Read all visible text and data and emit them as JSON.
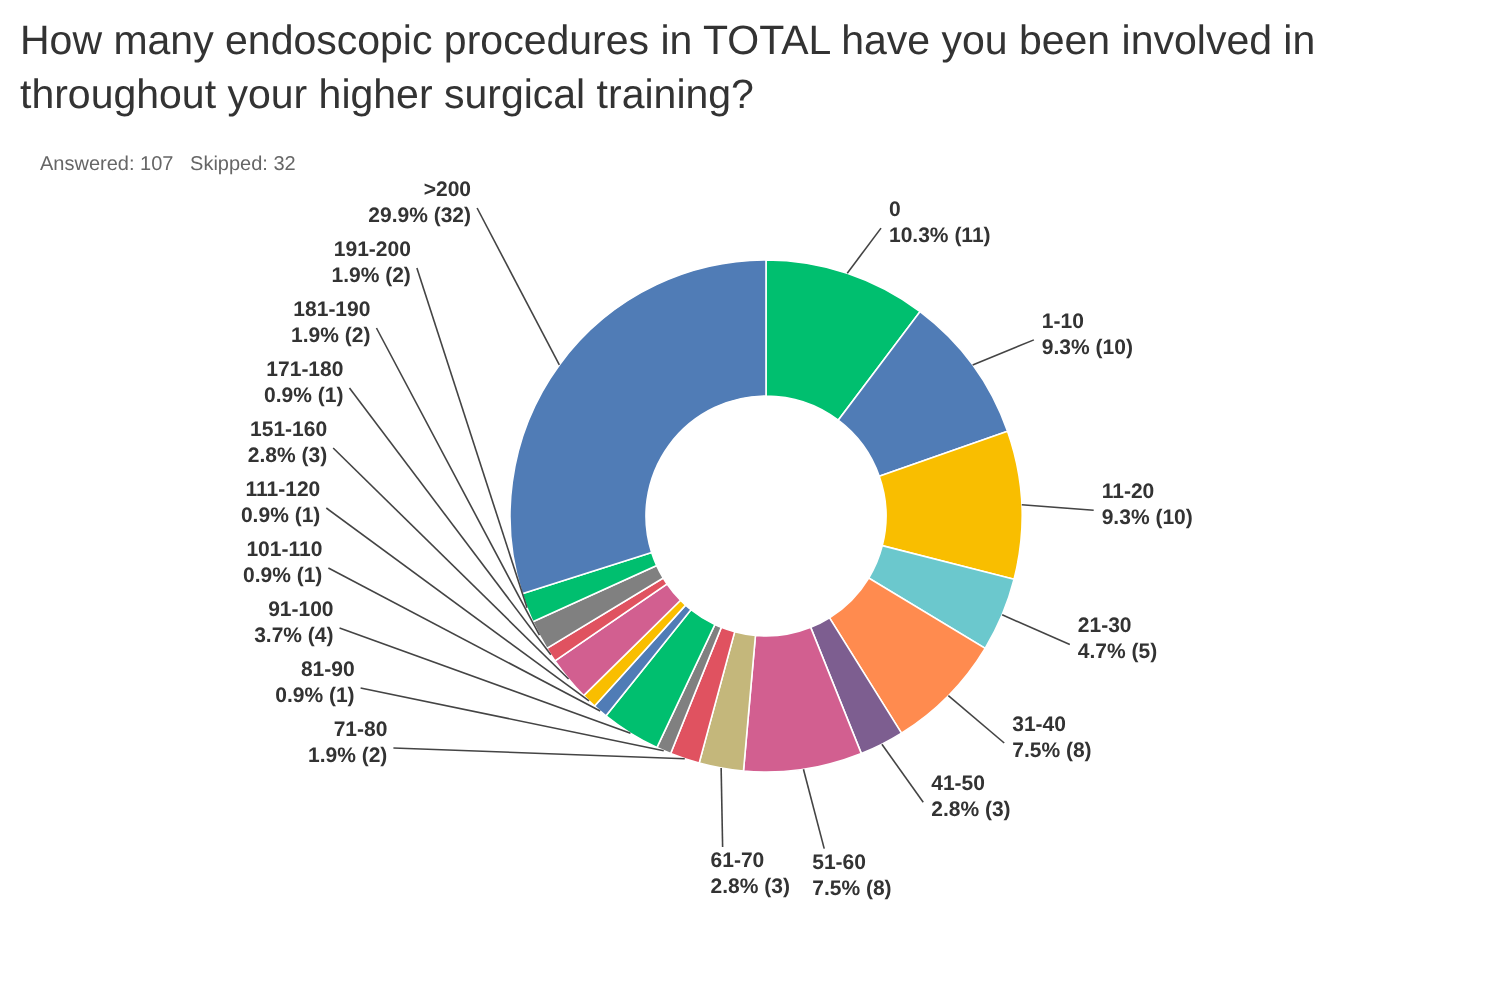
{
  "chart_data": {
    "type": "donut",
    "title": "How many endoscopic procedures in TOTAL have you been involved in throughout your higher surgical training?",
    "subtitle": "Answered: 107   Skipped: 32",
    "categories": [
      "0",
      "1-10",
      "11-20",
      "21-30",
      "31-40",
      "41-50",
      "51-60",
      "61-70",
      "71-80",
      "81-90",
      "91-100",
      "101-110",
      "111-120",
      "151-160",
      "171-180",
      "181-190",
      "191-200",
      ">200"
    ],
    "values": [
      11,
      10,
      10,
      5,
      8,
      3,
      8,
      3,
      2,
      1,
      4,
      1,
      1,
      3,
      1,
      2,
      2,
      32
    ],
    "colors": [
      "#00bf6f",
      "#507cb6",
      "#f9be00",
      "#6bc8cd",
      "#ff8b4f",
      "#7d5e90",
      "#d25f90",
      "#c4b77b",
      "#e05260",
      "#808080",
      "#00bf6f",
      "#507cb6",
      "#f9be00",
      "#d25f90",
      "#e05260",
      "#808080",
      "#00bf6f",
      "#507cb6"
    ],
    "value_labels": [
      "10.3% (11)",
      "9.3% (10)",
      "9.3% (10)",
      "4.7% (5)",
      "7.5% (8)",
      "2.8% (3)",
      "7.5% (8)",
      "2.8% (3)",
      "1.9% (2)",
      "0.9% (1)",
      "3.7% (4)",
      "0.9% (1)",
      "0.9% (1)",
      "2.8% (3)",
      "0.9% (1)",
      "1.9% (2)",
      "1.9% (2)",
      "29.9% (32)"
    ]
  }
}
